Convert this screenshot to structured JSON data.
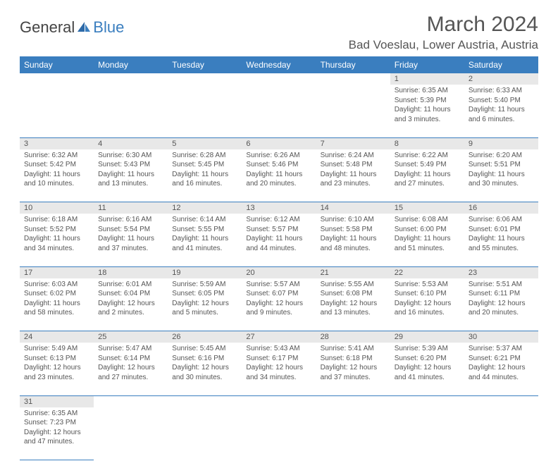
{
  "logo": {
    "text1": "General",
    "text2": "Blue"
  },
  "title": "March 2024",
  "subtitle": "Bad Voeslau, Lower Austria, Austria",
  "colors": {
    "header_bg": "#3a7ebf",
    "header_text": "#ffffff",
    "daynum_bg": "#e8e8e8",
    "text": "#555555",
    "rule": "#3a7ebf",
    "page_bg": "#ffffff"
  },
  "day_headers": [
    "Sunday",
    "Monday",
    "Tuesday",
    "Wednesday",
    "Thursday",
    "Friday",
    "Saturday"
  ],
  "weeks": [
    {
      "nums": [
        "",
        "",
        "",
        "",
        "",
        "1",
        "2"
      ],
      "cells": [
        null,
        null,
        null,
        null,
        null,
        {
          "sunrise": "Sunrise: 6:35 AM",
          "sunset": "Sunset: 5:39 PM",
          "daylight": "Daylight: 11 hours and 3 minutes."
        },
        {
          "sunrise": "Sunrise: 6:33 AM",
          "sunset": "Sunset: 5:40 PM",
          "daylight": "Daylight: 11 hours and 6 minutes."
        }
      ]
    },
    {
      "nums": [
        "3",
        "4",
        "5",
        "6",
        "7",
        "8",
        "9"
      ],
      "cells": [
        {
          "sunrise": "Sunrise: 6:32 AM",
          "sunset": "Sunset: 5:42 PM",
          "daylight": "Daylight: 11 hours and 10 minutes."
        },
        {
          "sunrise": "Sunrise: 6:30 AM",
          "sunset": "Sunset: 5:43 PM",
          "daylight": "Daylight: 11 hours and 13 minutes."
        },
        {
          "sunrise": "Sunrise: 6:28 AM",
          "sunset": "Sunset: 5:45 PM",
          "daylight": "Daylight: 11 hours and 16 minutes."
        },
        {
          "sunrise": "Sunrise: 6:26 AM",
          "sunset": "Sunset: 5:46 PM",
          "daylight": "Daylight: 11 hours and 20 minutes."
        },
        {
          "sunrise": "Sunrise: 6:24 AM",
          "sunset": "Sunset: 5:48 PM",
          "daylight": "Daylight: 11 hours and 23 minutes."
        },
        {
          "sunrise": "Sunrise: 6:22 AM",
          "sunset": "Sunset: 5:49 PM",
          "daylight": "Daylight: 11 hours and 27 minutes."
        },
        {
          "sunrise": "Sunrise: 6:20 AM",
          "sunset": "Sunset: 5:51 PM",
          "daylight": "Daylight: 11 hours and 30 minutes."
        }
      ]
    },
    {
      "nums": [
        "10",
        "11",
        "12",
        "13",
        "14",
        "15",
        "16"
      ],
      "cells": [
        {
          "sunrise": "Sunrise: 6:18 AM",
          "sunset": "Sunset: 5:52 PM",
          "daylight": "Daylight: 11 hours and 34 minutes."
        },
        {
          "sunrise": "Sunrise: 6:16 AM",
          "sunset": "Sunset: 5:54 PM",
          "daylight": "Daylight: 11 hours and 37 minutes."
        },
        {
          "sunrise": "Sunrise: 6:14 AM",
          "sunset": "Sunset: 5:55 PM",
          "daylight": "Daylight: 11 hours and 41 minutes."
        },
        {
          "sunrise": "Sunrise: 6:12 AM",
          "sunset": "Sunset: 5:57 PM",
          "daylight": "Daylight: 11 hours and 44 minutes."
        },
        {
          "sunrise": "Sunrise: 6:10 AM",
          "sunset": "Sunset: 5:58 PM",
          "daylight": "Daylight: 11 hours and 48 minutes."
        },
        {
          "sunrise": "Sunrise: 6:08 AM",
          "sunset": "Sunset: 6:00 PM",
          "daylight": "Daylight: 11 hours and 51 minutes."
        },
        {
          "sunrise": "Sunrise: 6:06 AM",
          "sunset": "Sunset: 6:01 PM",
          "daylight": "Daylight: 11 hours and 55 minutes."
        }
      ]
    },
    {
      "nums": [
        "17",
        "18",
        "19",
        "20",
        "21",
        "22",
        "23"
      ],
      "cells": [
        {
          "sunrise": "Sunrise: 6:03 AM",
          "sunset": "Sunset: 6:02 PM",
          "daylight": "Daylight: 11 hours and 58 minutes."
        },
        {
          "sunrise": "Sunrise: 6:01 AM",
          "sunset": "Sunset: 6:04 PM",
          "daylight": "Daylight: 12 hours and 2 minutes."
        },
        {
          "sunrise": "Sunrise: 5:59 AM",
          "sunset": "Sunset: 6:05 PM",
          "daylight": "Daylight: 12 hours and 5 minutes."
        },
        {
          "sunrise": "Sunrise: 5:57 AM",
          "sunset": "Sunset: 6:07 PM",
          "daylight": "Daylight: 12 hours and 9 minutes."
        },
        {
          "sunrise": "Sunrise: 5:55 AM",
          "sunset": "Sunset: 6:08 PM",
          "daylight": "Daylight: 12 hours and 13 minutes."
        },
        {
          "sunrise": "Sunrise: 5:53 AM",
          "sunset": "Sunset: 6:10 PM",
          "daylight": "Daylight: 12 hours and 16 minutes."
        },
        {
          "sunrise": "Sunrise: 5:51 AM",
          "sunset": "Sunset: 6:11 PM",
          "daylight": "Daylight: 12 hours and 20 minutes."
        }
      ]
    },
    {
      "nums": [
        "24",
        "25",
        "26",
        "27",
        "28",
        "29",
        "30"
      ],
      "cells": [
        {
          "sunrise": "Sunrise: 5:49 AM",
          "sunset": "Sunset: 6:13 PM",
          "daylight": "Daylight: 12 hours and 23 minutes."
        },
        {
          "sunrise": "Sunrise: 5:47 AM",
          "sunset": "Sunset: 6:14 PM",
          "daylight": "Daylight: 12 hours and 27 minutes."
        },
        {
          "sunrise": "Sunrise: 5:45 AM",
          "sunset": "Sunset: 6:16 PM",
          "daylight": "Daylight: 12 hours and 30 minutes."
        },
        {
          "sunrise": "Sunrise: 5:43 AM",
          "sunset": "Sunset: 6:17 PM",
          "daylight": "Daylight: 12 hours and 34 minutes."
        },
        {
          "sunrise": "Sunrise: 5:41 AM",
          "sunset": "Sunset: 6:18 PM",
          "daylight": "Daylight: 12 hours and 37 minutes."
        },
        {
          "sunrise": "Sunrise: 5:39 AM",
          "sunset": "Sunset: 6:20 PM",
          "daylight": "Daylight: 12 hours and 41 minutes."
        },
        {
          "sunrise": "Sunrise: 5:37 AM",
          "sunset": "Sunset: 6:21 PM",
          "daylight": "Daylight: 12 hours and 44 minutes."
        }
      ]
    },
    {
      "nums": [
        "31",
        "",
        "",
        "",
        "",
        "",
        ""
      ],
      "cells": [
        {
          "sunrise": "Sunrise: 6:35 AM",
          "sunset": "Sunset: 7:23 PM",
          "daylight": "Daylight: 12 hours and 47 minutes."
        },
        null,
        null,
        null,
        null,
        null,
        null
      ]
    }
  ]
}
